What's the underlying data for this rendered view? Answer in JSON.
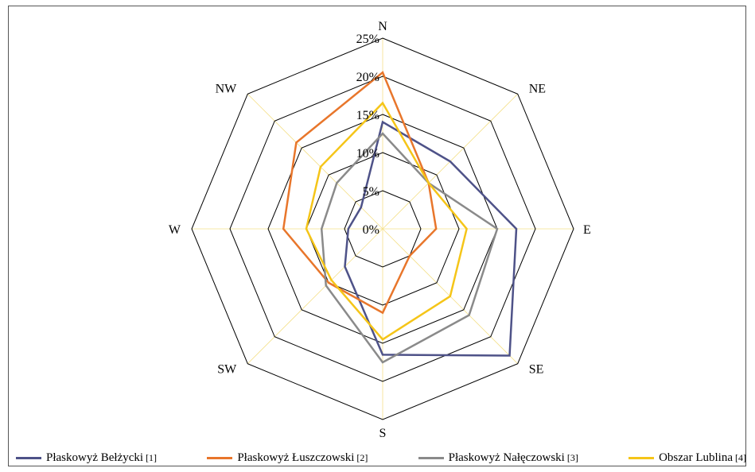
{
  "chart_data": {
    "type": "radar",
    "title": "",
    "directions": [
      "N",
      "NE",
      "E",
      "SE",
      "S",
      "SW",
      "W",
      "NW"
    ],
    "rlim": [
      0,
      25
    ],
    "ticks": [
      "0%",
      "5%",
      "10%",
      "15%",
      "20%",
      "25%"
    ],
    "tick_values": [
      0,
      5,
      10,
      15,
      20,
      25
    ],
    "grid": true,
    "legend_position": "bottom",
    "series": [
      {
        "name": "Płaskowyż Bełżycki",
        "ref": "[1]",
        "color": "#4e5288",
        "values": [
          14.0,
          12.5,
          17.5,
          23.5,
          16.5,
          7.0,
          4.5,
          4.0
        ]
      },
      {
        "name": "Płaskowyż Łuszczowski",
        "ref": "[2]",
        "color": "#e8762b",
        "values": [
          20.5,
          8.5,
          7.0,
          5.0,
          11.0,
          10.0,
          13.0,
          16.0
        ]
      },
      {
        "name": "Płaskowyż Nałęczowski",
        "ref": "[3]",
        "color": "#8a8a8a",
        "values": [
          12.5,
          8.5,
          15.0,
          16.0,
          17.5,
          10.5,
          8.0,
          8.5
        ]
      },
      {
        "name": "Obszar Lublina",
        "ref": "[4]",
        "color": "#f5c518",
        "values": [
          16.5,
          8.5,
          11.0,
          12.5,
          14.5,
          9.5,
          10.0,
          11.5
        ]
      }
    ]
  }
}
